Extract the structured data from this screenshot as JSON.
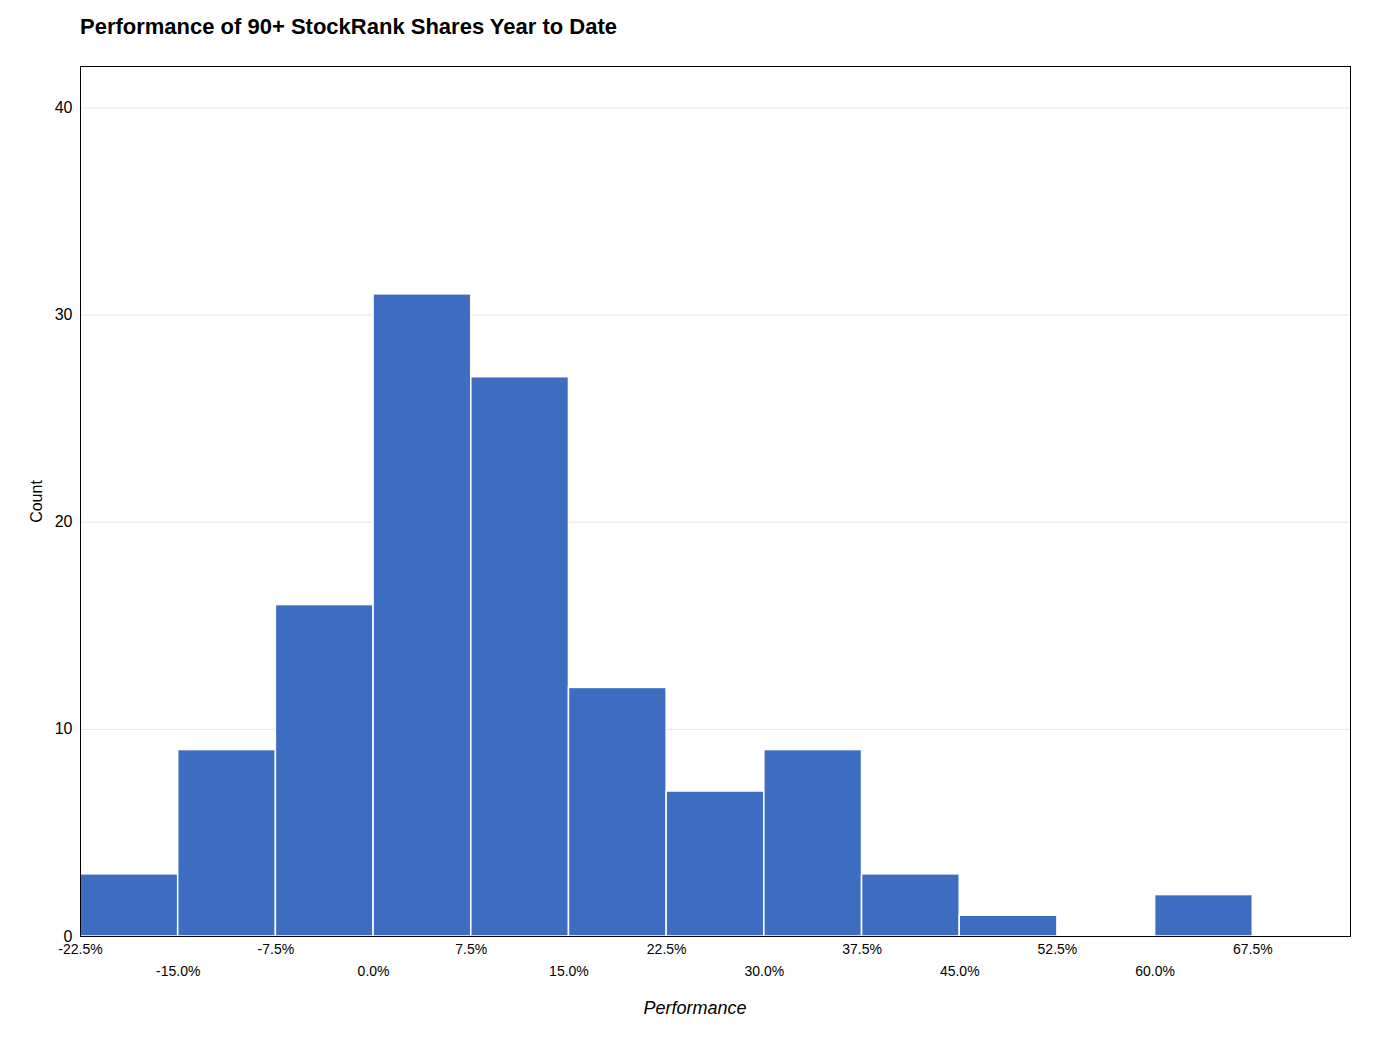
{
  "chart_data": {
    "type": "histogram",
    "title": "Performance of 90+ StockRank Shares Year to Date",
    "xlabel": "Performance",
    "ylabel": "Count",
    "bins": [
      -0.225,
      -0.15,
      -0.075,
      0.0,
      0.075,
      0.15,
      0.225,
      0.3,
      0.375,
      0.45,
      0.525,
      0.6,
      0.675
    ],
    "values": [
      3,
      9,
      16,
      31,
      27,
      12,
      7,
      9,
      3,
      1,
      0,
      2
    ],
    "color": "#3d6cc0",
    "xlim": [
      -0.225,
      0.75
    ],
    "ylim": [
      0,
      42
    ],
    "yticks": [
      0,
      10,
      20,
      30,
      40
    ],
    "xticks": [
      {
        "value": -0.225,
        "label": "-22.5%"
      },
      {
        "value": -0.15,
        "label": "-15.0%"
      },
      {
        "value": -0.075,
        "label": "-7.5%"
      },
      {
        "value": 0.0,
        "label": "0.0%"
      },
      {
        "value": 0.075,
        "label": "7.5%"
      },
      {
        "value": 0.15,
        "label": "15.0%"
      },
      {
        "value": 0.225,
        "label": "22.5%"
      },
      {
        "value": 0.3,
        "label": "30.0%"
      },
      {
        "value": 0.375,
        "label": "37.5%"
      },
      {
        "value": 0.45,
        "label": "45.0%"
      },
      {
        "value": 0.525,
        "label": "52.5%"
      },
      {
        "value": 0.6,
        "label": "60.0%"
      },
      {
        "value": 0.675,
        "label": "67.5%"
      }
    ],
    "grid": true
  }
}
